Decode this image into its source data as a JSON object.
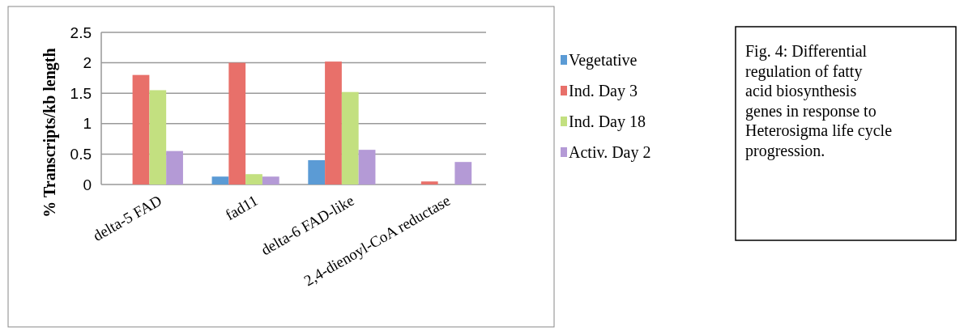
{
  "chart_data": {
    "type": "bar",
    "ylabel": "% Transcripts/kb length",
    "categories": [
      "delta-5 FAD",
      "fad11",
      "delta-6 FAD-like",
      "2,4-dienoyl-CoA reductase"
    ],
    "series": [
      {
        "name": "Vegetative",
        "color": "#5b9bd5",
        "values": [
          0,
          0.13,
          0.4,
          0
        ]
      },
      {
        "name": "Ind. Day 3",
        "color": "#e8706a",
        "values": [
          1.8,
          2.0,
          2.02,
          0.05
        ]
      },
      {
        "name": "Ind. Day 18",
        "color": "#c3e080",
        "values": [
          1.55,
          0.17,
          1.52,
          0
        ]
      },
      {
        "name": "Activ. Day 2",
        "color": "#b49ad6",
        "values": [
          0.55,
          0.13,
          0.57,
          0.37
        ]
      }
    ],
    "ylim": [
      0,
      2.5
    ],
    "yticks": [
      0,
      {
        "value": 0.5,
        "label": "0.5"
      },
      1,
      {
        "value": 1.5,
        "label": "1.5"
      },
      2,
      {
        "value": 2.5,
        "label": "2.5"
      }
    ],
    "grid": "y",
    "legend": "right",
    "annotations": [
      "Fig. 4: Differential regulation of fatty acid biosynthesis genes in response to Heterosigma life cycle progression."
    ]
  }
}
